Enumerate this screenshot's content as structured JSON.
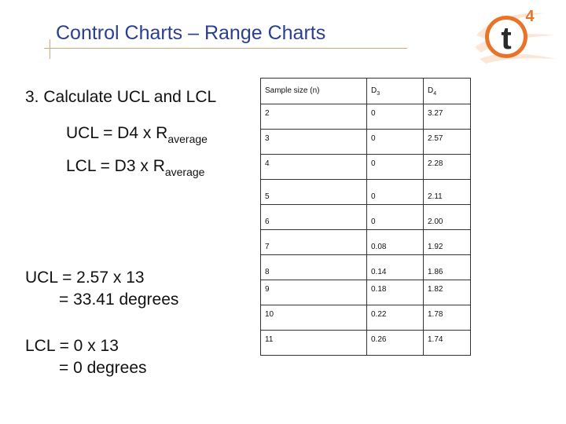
{
  "title": "Control Charts – Range Charts",
  "logo": {
    "letter": "t",
    "superscript": "4",
    "color": "#e8742a"
  },
  "step": "3. Calculate UCL and LCL",
  "formulas": [
    {
      "main": "UCL = D4 x R",
      "sub": "average"
    },
    {
      "main": "LCL = D3 x R",
      "sub": "average"
    }
  ],
  "calculations": [
    {
      "line1": "UCL = 2.57 x 13",
      "line2": "= 33.41 degrees"
    },
    {
      "line1": "LCL = 0 x 13",
      "line2": "= 0  degrees"
    }
  ],
  "table": {
    "headers": [
      {
        "main": "Sample size (n)",
        "sub": ""
      },
      {
        "main": "D",
        "sub": "3"
      },
      {
        "main": "D",
        "sub": "4"
      }
    ],
    "rows": [
      [
        "2",
        "0",
        "3.27"
      ],
      [
        "3",
        "0",
        "2.57"
      ],
      [
        "4",
        "0",
        "2.28"
      ],
      [
        "5",
        "0",
        "2.11"
      ],
      [
        "6",
        "0",
        "2.00"
      ],
      [
        "7",
        "0.08",
        "1.92"
      ],
      [
        "8",
        "0.14",
        "1.86"
      ],
      [
        "9",
        "0.18",
        "1.82"
      ],
      [
        "10",
        "0.22",
        "1.78"
      ],
      [
        "11",
        "0.26",
        "1.74"
      ]
    ]
  }
}
